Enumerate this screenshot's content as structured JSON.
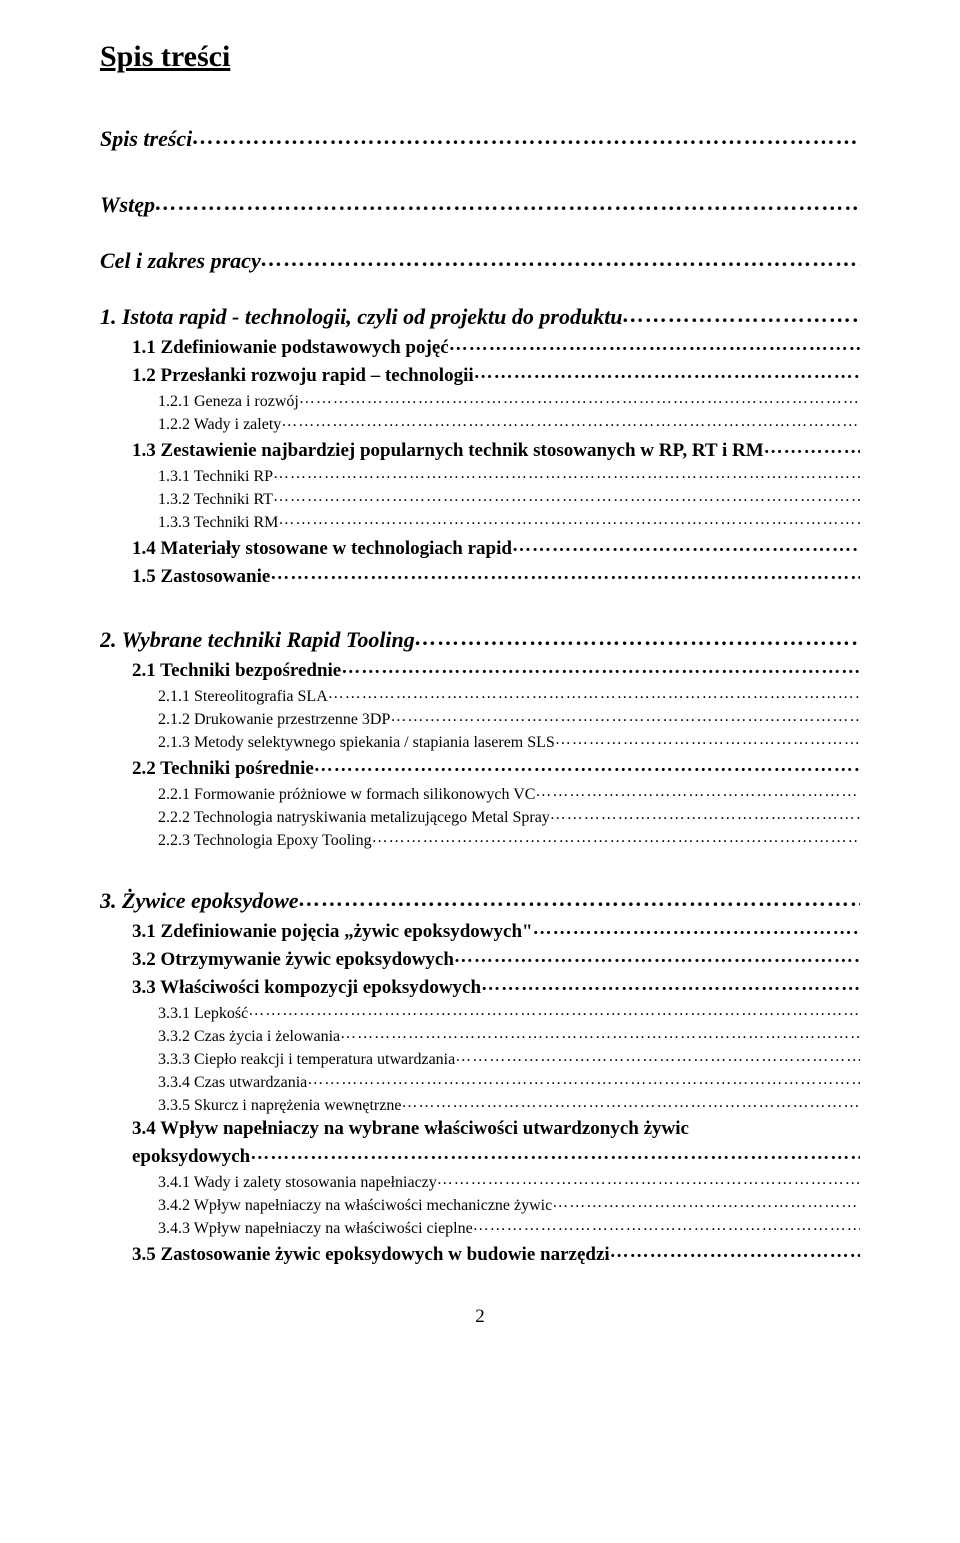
{
  "title": "Spis treści",
  "pageNumber": "2",
  "toc": [
    {
      "class": "level-italic-bold",
      "label": "Spis treści"
    },
    {
      "spacer": "spacer-lg"
    },
    {
      "class": "level-italic-bold",
      "label": "Wstęp"
    },
    {
      "spacer": "spacer-md"
    },
    {
      "class": "level-italic-bold",
      "label": "Cel i zakres pracy"
    },
    {
      "spacer": "spacer-md"
    },
    {
      "class": "level-italic-bold",
      "label": "1. Istota rapid - technologii, czyli od projektu do produktu"
    },
    {
      "class": "level-bold",
      "label": "1.1 Zdefiniowanie podstawowych pojęć"
    },
    {
      "class": "level-bold",
      "label": "1.2 Przesłanki rozwoju rapid – technologii"
    },
    {
      "class": "level-plain",
      "label": "1.2.1 Geneza i rozwój"
    },
    {
      "class": "level-plain",
      "label": "1.2.2 Wady i zalety"
    },
    {
      "class": "level-bold",
      "label": "1.3 Zestawienie najbardziej popularnych technik stosowanych w RP, RT i RM"
    },
    {
      "class": "level-plain",
      "label": "1.3.1 Techniki RP"
    },
    {
      "class": "level-plain",
      "label": "1.3.2 Techniki RT"
    },
    {
      "class": "level-plain",
      "label": "1.3.3 Techniki RM"
    },
    {
      "class": "level-bold",
      "label": "1.4 Materiały stosowane w technologiach rapid"
    },
    {
      "class": "level-bold",
      "label": "1.5 Zastosowanie"
    },
    {
      "spacer": "spacer-lg"
    },
    {
      "class": "level-italic-bold",
      "label": "2. Wybrane techniki Rapid Tooling"
    },
    {
      "class": "level-bold",
      "label": "2.1 Techniki bezpośrednie"
    },
    {
      "class": "level-plain",
      "label": "2.1.1  Stereolitografia SLA"
    },
    {
      "class": "level-plain",
      "label": "2.1.2  Drukowanie przestrzenne 3DP"
    },
    {
      "class": "level-plain",
      "label": "2.1.3  Metody selektywnego spiekania / stapiania laserem SLS"
    },
    {
      "class": "level-bold",
      "label": "2.2 Techniki pośrednie"
    },
    {
      "class": "level-plain",
      "label": "2.2.1  Formowanie próżniowe w formach silikonowych VC"
    },
    {
      "class": "level-plain",
      "label": "2.2.2  Technologia natryskiwania metalizującego Metal Spray"
    },
    {
      "class": "level-plain",
      "label": "2.2.3  Technologia Epoxy Tooling"
    },
    {
      "spacer": "spacer-lg"
    },
    {
      "class": "level-italic-bold",
      "label": "3. Żywice epoksydowe"
    },
    {
      "class": "level-bold",
      "label": "3.1 Zdefiniowanie pojęcia „żywic epoksydowych\""
    },
    {
      "class": "level-bold",
      "label": "3.2 Otrzymywanie żywic epoksydowych"
    },
    {
      "class": "level-bold",
      "label": "3.3 Właściwości kompozycji epoksydowych"
    },
    {
      "class": "level-plain",
      "label": "3.3.1 Lepkość"
    },
    {
      "class": "level-plain",
      "label": "3.3.2 Czas życia i żelowania"
    },
    {
      "class": "level-plain",
      "label": "3.3.3 Ciepło reakcji i temperatura utwardzania"
    },
    {
      "class": "level-plain",
      "label": "3.3.4 Czas utwardzania"
    },
    {
      "class": "level-plain",
      "label": "3.3.5 Skurcz i naprężenia wewnętrzne"
    },
    {
      "class": "level-bold",
      "label": "3.4 Wpływ napełniaczy na wybrane właściwości utwardzonych żywic",
      "noLeader": true
    },
    {
      "class": "level-bold cont-indent",
      "label": "epoksydowych",
      "continuation": true
    },
    {
      "class": "level-plain",
      "label": "3.4.1 Wady i zalety stosowania napełniaczy"
    },
    {
      "class": "level-plain",
      "label": "3.4.2 Wpływ napełniaczy na właściwości mechaniczne żywic"
    },
    {
      "class": "level-plain",
      "label": "3.4.3 Wpływ napełniaczy na właściwości cieplne"
    },
    {
      "class": "level-bold",
      "label": "3.5 Zastosowanie żywic epoksydowych w budowie narzędzi"
    }
  ]
}
